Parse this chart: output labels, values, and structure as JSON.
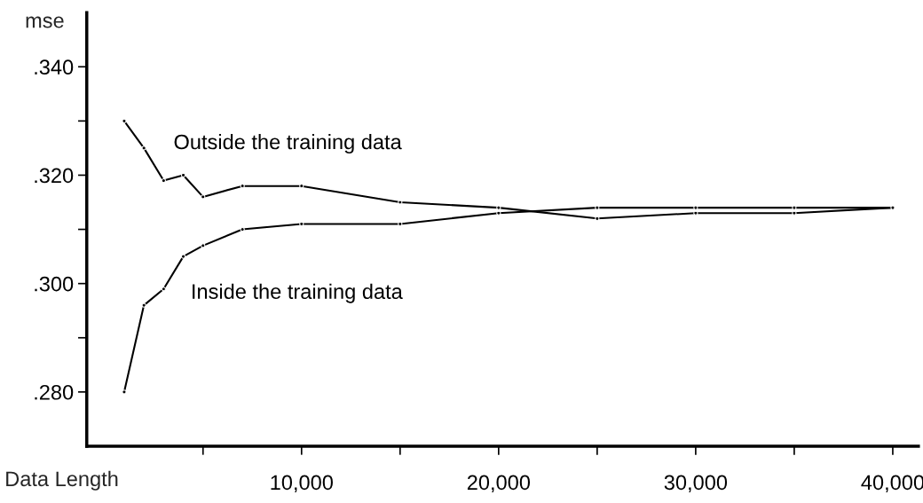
{
  "chart_data": {
    "type": "line",
    "xlabel": "Data Length",
    "ylabel": "mse",
    "x": [
      1000,
      2000,
      3000,
      4000,
      5000,
      7000,
      10000,
      15000,
      20000,
      25000,
      30000,
      35000,
      40000
    ],
    "series": [
      {
        "name": "Outside the training data",
        "color": "#000000",
        "values": [
          0.33,
          0.325,
          0.319,
          0.32,
          0.316,
          0.318,
          0.318,
          0.315,
          0.314,
          0.312,
          0.313,
          0.313,
          0.314
        ]
      },
      {
        "name": "Inside the training data",
        "color": "#000000",
        "values": [
          0.28,
          0.296,
          0.299,
          0.305,
          0.307,
          0.31,
          0.311,
          0.311,
          0.313,
          0.314,
          0.314,
          0.314,
          0.314
        ]
      }
    ],
    "xlim": [
      -900,
      41300
    ],
    "ylim": [
      0.27,
      0.35
    ],
    "xticks": [
      {
        "value": 5000,
        "label": null
      },
      {
        "value": 10000,
        "label": "10,000"
      },
      {
        "value": 15000,
        "label": null
      },
      {
        "value": 20000,
        "label": "20,000"
      },
      {
        "value": 25000,
        "label": null
      },
      {
        "value": 30000,
        "label": "30,000"
      },
      {
        "value": 35000,
        "label": null
      },
      {
        "value": 40000,
        "label": "40,000"
      }
    ],
    "yticks": [
      {
        "value": 0.28,
        "label": ".280"
      },
      {
        "value": 0.29,
        "label": null
      },
      {
        "value": 0.3,
        "label": ".300"
      },
      {
        "value": 0.31,
        "label": null
      },
      {
        "value": 0.32,
        "label": ".320"
      },
      {
        "value": 0.33,
        "label": null
      },
      {
        "value": 0.34,
        "label": ".340"
      }
    ],
    "marker": "circle",
    "line_style": "solid",
    "grid": false,
    "legend": false
  }
}
